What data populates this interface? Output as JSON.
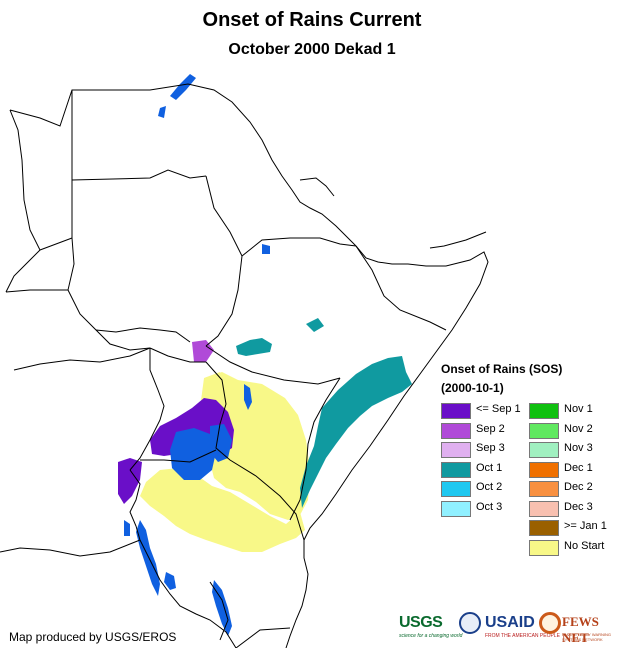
{
  "title": "Onset of Rains Current",
  "subtitle": "October 2000 Dekad 1",
  "legend": {
    "title": "Onset of Rains (SOS)",
    "subtitle": "(2000-10-1)",
    "items": [
      {
        "label": "<= Sep 1",
        "color": "#6a0fc8"
      },
      {
        "label": "Sep 2",
        "color": "#b04ad8"
      },
      {
        "label": "Sep 3",
        "color": "#e0b0f0"
      },
      {
        "label": "Oct 1",
        "color": "#109aa0"
      },
      {
        "label": "Oct 2",
        "color": "#20c8f0"
      },
      {
        "label": "Oct 3",
        "color": "#90f0ff"
      },
      {
        "label": "Nov 1",
        "color": "#10c010"
      },
      {
        "label": "Nov 2",
        "color": "#60e860"
      },
      {
        "label": "Nov 3",
        "color": "#a0f0c0"
      },
      {
        "label": "Dec 1",
        "color": "#f07000"
      },
      {
        "label": "Dec 2",
        "color": "#f89040"
      },
      {
        "label": "Dec 3",
        "color": "#f8c0b0"
      },
      {
        "label": ">= Jan 1",
        "color": "#9a6000"
      },
      {
        "label": "No Start",
        "color": "#f8f888"
      }
    ]
  },
  "credit": "Map produced by USGS/EROS",
  "logos": {
    "usgs": "USGS",
    "usgs_tagline": "science for a changing world",
    "usaid": "USAID",
    "usaid_tagline": "FROM THE AMERICAN PEOPLE",
    "fews": "FEWS NET",
    "fews_tagline": "FAMINE EARLY WARNING SYSTEMS NETWORK"
  },
  "colors": {
    "water": "#1060e0",
    "border": "#000000"
  }
}
